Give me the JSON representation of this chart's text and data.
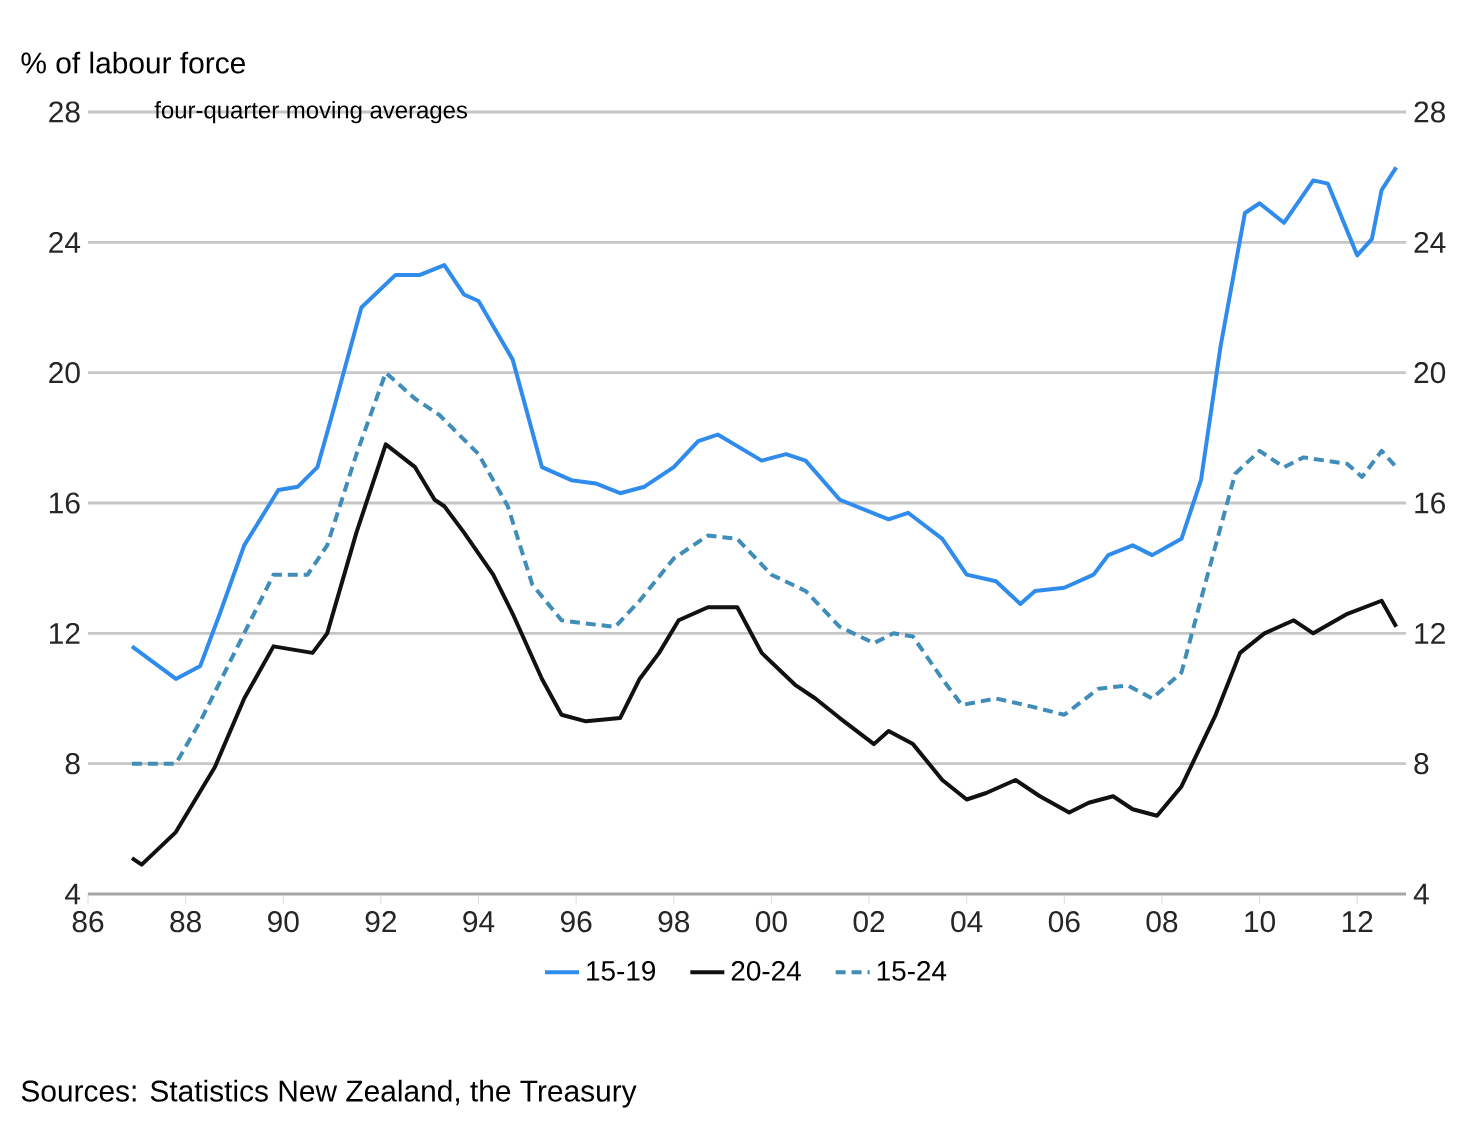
{
  "chart_data": {
    "type": "line",
    "ylabel": "% of labour force",
    "subtitle": "four-quarter moving averages",
    "xlim": [
      1986,
      2013
    ],
    "xticks": [
      {
        "value": 1986,
        "label": "86"
      },
      {
        "value": 1988,
        "label": "88"
      },
      {
        "value": 1990,
        "label": "90"
      },
      {
        "value": 1992,
        "label": "92"
      },
      {
        "value": 1994,
        "label": "94"
      },
      {
        "value": 1996,
        "label": "96"
      },
      {
        "value": 1998,
        "label": "98"
      },
      {
        "value": 2000,
        "label": "00"
      },
      {
        "value": 2002,
        "label": "02"
      },
      {
        "value": 2004,
        "label": "04"
      },
      {
        "value": 2006,
        "label": "06"
      },
      {
        "value": 2008,
        "label": "08"
      },
      {
        "value": 2010,
        "label": "10"
      },
      {
        "value": 2012,
        "label": "12"
      }
    ],
    "ylim": [
      4,
      28
    ],
    "yticks": [
      4,
      8,
      12,
      16,
      20,
      24,
      28
    ],
    "y2lim": [
      4,
      28
    ],
    "y2ticks": [
      4,
      8,
      12,
      16,
      20,
      24,
      28
    ],
    "grid": "y",
    "legend": "bottom",
    "series": [
      {
        "name": "15-19",
        "color": "#2f8cec",
        "line_style": "solid",
        "x": [
          1986.9,
          1987.8,
          1988.3,
          1988.7,
          1989.2,
          1989.9,
          1990.3,
          1990.7,
          1991.0,
          1991.6,
          1992.3,
          1992.8,
          1993.3,
          1993.7,
          1994.0,
          1994.7,
          1995.3,
          1995.9,
          1996.4,
          1996.9,
          1997.4,
          1998.0,
          1998.5,
          1998.9,
          1999.8,
          2000.3,
          2000.7,
          2001.4,
          2002.4,
          2002.8,
          2003.5,
          2004.0,
          2004.6,
          2005.1,
          2005.4,
          2006.0,
          2006.6,
          2006.9,
          2007.4,
          2007.8,
          2008.4,
          2008.8,
          2009.2,
          2009.7,
          2010.0,
          2010.5,
          2011.1,
          2011.4,
          2012.0,
          2012.3,
          2012.5,
          2012.8
        ],
        "values": [
          11.6,
          10.6,
          11.0,
          12.6,
          14.7,
          16.4,
          16.5,
          17.1,
          18.7,
          22.0,
          23.0,
          23.0,
          23.3,
          22.4,
          22.2,
          20.4,
          17.1,
          16.7,
          16.6,
          16.3,
          16.5,
          17.1,
          17.9,
          18.1,
          17.3,
          17.5,
          17.3,
          16.1,
          15.5,
          15.7,
          14.9,
          13.8,
          13.6,
          12.9,
          13.3,
          13.4,
          13.8,
          14.4,
          14.7,
          14.4,
          14.9,
          16.7,
          20.8,
          24.9,
          25.2,
          24.6,
          25.9,
          25.8,
          23.6,
          24.1,
          25.6,
          26.3
        ]
      },
      {
        "name": "20-24",
        "color": "#111111",
        "line_style": "solid",
        "x": [
          1986.9,
          1987.1,
          1987.8,
          1988.6,
          1989.2,
          1989.8,
          1990.6,
          1990.9,
          1991.5,
          1992.1,
          1992.7,
          1993.1,
          1993.3,
          1993.7,
          1994.3,
          1994.7,
          1995.3,
          1995.7,
          1996.2,
          1996.9,
          1997.3,
          1997.7,
          1998.1,
          1998.7,
          1999.3,
          1999.8,
          2000.5,
          2000.9,
          2001.4,
          2002.1,
          2002.4,
          2002.9,
          2003.5,
          2004.0,
          2004.4,
          2005.0,
          2005.5,
          2006.1,
          2006.5,
          2007.0,
          2007.4,
          2007.9,
          2008.4,
          2009.1,
          2009.6,
          2010.1,
          2010.7,
          2011.1,
          2011.8,
          2012.5,
          2012.8
        ],
        "values": [
          5.1,
          4.9,
          5.9,
          7.9,
          10.0,
          11.6,
          11.4,
          12.0,
          15.1,
          17.8,
          17.1,
          16.1,
          15.9,
          15.1,
          13.8,
          12.6,
          10.6,
          9.5,
          9.3,
          9.4,
          10.6,
          11.4,
          12.4,
          12.8,
          12.8,
          11.4,
          10.4,
          10.0,
          9.4,
          8.6,
          9.0,
          8.6,
          7.5,
          6.9,
          7.1,
          7.5,
          7.0,
          6.5,
          6.8,
          7.0,
          6.6,
          6.4,
          7.3,
          9.5,
          11.4,
          12.0,
          12.4,
          12.0,
          12.6,
          13.0,
          12.2
        ]
      },
      {
        "name": "15-24",
        "color": "#3f8db8",
        "line_style": "dashed",
        "x": [
          1986.9,
          1987.8,
          1988.3,
          1989.0,
          1989.8,
          1990.5,
          1990.9,
          1991.5,
          1992.1,
          1992.7,
          1993.2,
          1994.0,
          1994.6,
          1995.1,
          1995.7,
          1996.2,
          1996.8,
          1997.3,
          1998.0,
          1998.7,
          1999.3,
          2000.0,
          2000.7,
          2001.4,
          2002.1,
          2002.5,
          2002.9,
          2003.5,
          2003.9,
          2004.6,
          2005.2,
          2006.0,
          2006.7,
          2007.3,
          2007.8,
          2008.4,
          2008.9,
          2009.5,
          2010.0,
          2010.5,
          2010.9,
          2011.8,
          2012.1,
          2012.5,
          2012.8
        ],
        "values": [
          8.0,
          8.0,
          9.3,
          11.4,
          13.8,
          13.8,
          14.7,
          17.5,
          20.0,
          19.2,
          18.7,
          17.5,
          15.9,
          13.5,
          12.4,
          12.3,
          12.2,
          13.0,
          14.3,
          15.0,
          14.9,
          13.8,
          13.3,
          12.2,
          11.7,
          12.0,
          11.9,
          10.6,
          9.8,
          10.0,
          9.8,
          9.5,
          10.3,
          10.4,
          10.0,
          10.8,
          13.6,
          16.9,
          17.6,
          17.1,
          17.4,
          17.2,
          16.8,
          17.6,
          17.1
        ]
      }
    ],
    "annotations": [
      "Sources: Statistics New Zealand, the Treasury"
    ]
  }
}
